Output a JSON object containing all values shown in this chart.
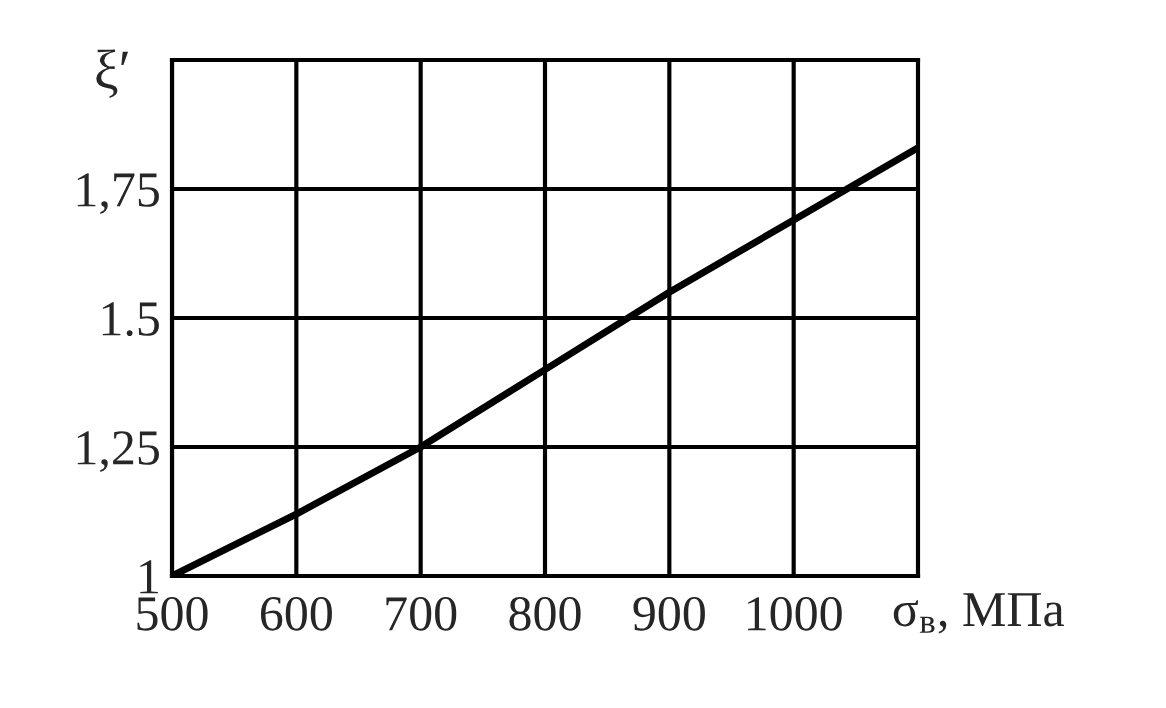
{
  "chart_data": {
    "type": "line",
    "xlabel": "σ$_{в}$, МПа",
    "ylabel": "ξ′",
    "x": [
      500,
      600,
      700,
      800,
      900,
      1000,
      1100
    ],
    "series": [
      {
        "color": "#000000",
        "values": [
          1.0,
          1.12,
          1.25,
          1.4,
          1.55,
          1.69,
          1.83
        ]
      }
    ],
    "xlim": [
      500,
      1100
    ],
    "xticks": [
      500,
      600,
      700,
      800,
      900,
      1000
    ],
    "ylim": [
      1,
      2
    ],
    "yticks": [
      {
        "value": 1,
        "label": "1"
      },
      {
        "value": 1.25,
        "label": "1,25"
      },
      {
        "value": 1.5,
        "label": "1.5"
      },
      {
        "value": 1.75,
        "label": "1,75"
      }
    ],
    "grid": true,
    "marker": "none",
    "line_style": "solid"
  }
}
